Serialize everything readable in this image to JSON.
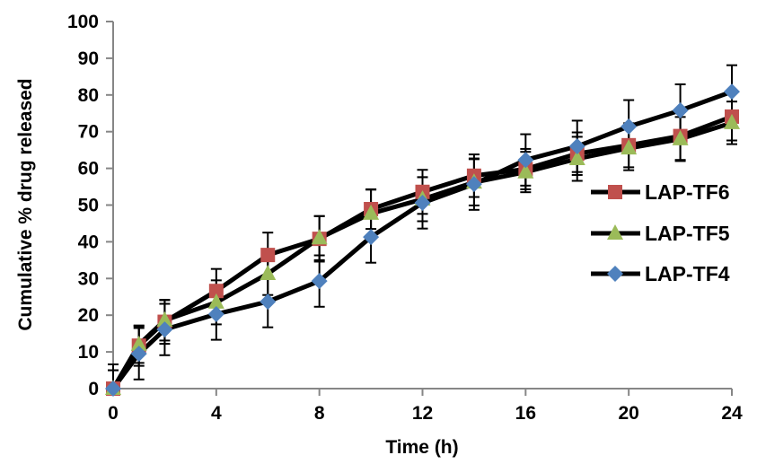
{
  "chart_data": {
    "type": "line",
    "title": "",
    "xlabel": "Time (h)",
    "ylabel": "Cumulative % drug released",
    "xlim": [
      0,
      24
    ],
    "ylim": [
      0,
      100
    ],
    "xticks": [
      0,
      4,
      8,
      12,
      16,
      20,
      24
    ],
    "yticks": [
      0,
      10,
      20,
      30,
      40,
      50,
      60,
      70,
      80,
      90,
      100
    ],
    "grid": false,
    "legend_position": "right",
    "x": [
      0,
      1,
      2,
      4,
      6,
      8,
      10,
      12,
      14,
      16,
      18,
      20,
      22,
      24
    ],
    "series": [
      {
        "name": "LAP-TF6",
        "marker": "square",
        "color": "#C0504D",
        "values": [
          0,
          11.7,
          18.2,
          26.6,
          36.4,
          40.8,
          48.9,
          53.6,
          58.0,
          59.8,
          64.0,
          66.3,
          68.8,
          74.1
        ],
        "errors": [
          5.0,
          5.5,
          6.0,
          6.0,
          6.1,
          6.2,
          5.4,
          6.0,
          5.8,
          5.5,
          5.8,
          6.0,
          6.5,
          6.5
        ]
      },
      {
        "name": "LAP-TF5",
        "marker": "triangle",
        "color": "#9BBB59",
        "values": [
          0,
          12.0,
          18.6,
          23.5,
          31.3,
          41.0,
          47.7,
          51.6,
          56.2,
          59.0,
          62.6,
          65.5,
          68.0,
          72.4
        ],
        "errors": [
          5.0,
          5.0,
          5.5,
          6.0,
          5.8,
          6.0,
          6.5,
          6.0,
          6.3,
          5.5,
          6.0,
          6.0,
          6.0,
          5.8
        ]
      },
      {
        "name": "LAP-TF4",
        "marker": "diamond",
        "color": "#4F81BD",
        "values": [
          0,
          9.5,
          16.1,
          20.3,
          23.7,
          29.3,
          41.3,
          50.6,
          55.7,
          62.3,
          66.0,
          71.4,
          75.8,
          80.9
        ],
        "errors": [
          6.6,
          7.0,
          7.0,
          7.0,
          7.0,
          7.0,
          7.0,
          7.0,
          7.0,
          7.0,
          7.0,
          7.2,
          7.1,
          7.2
        ]
      }
    ]
  }
}
